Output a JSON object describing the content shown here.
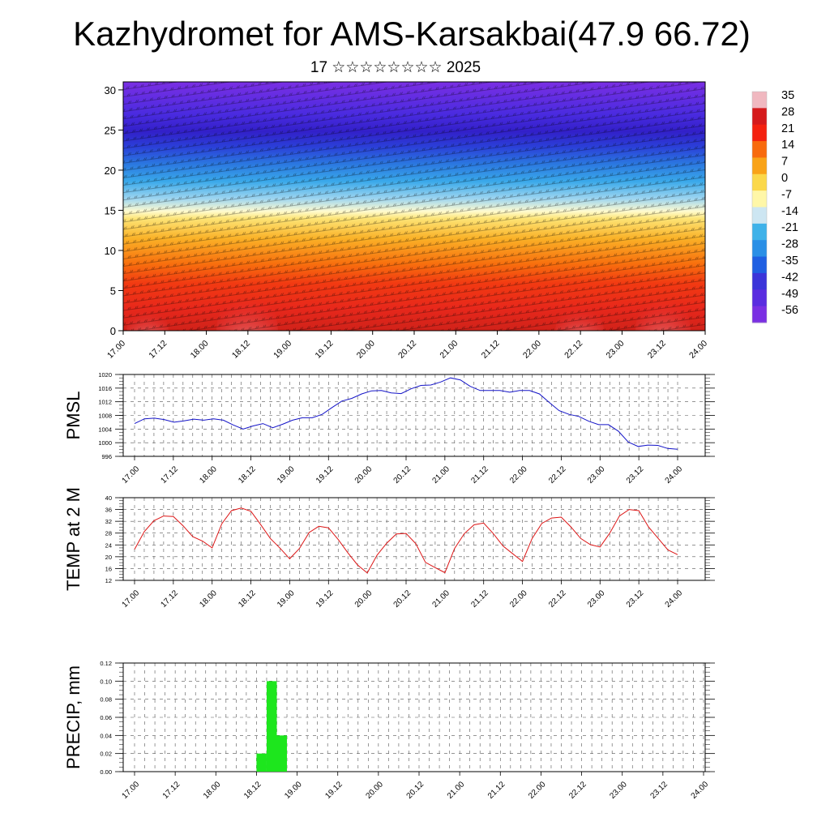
{
  "title": "Kazhydromet for AMS-Karsakbai(47.9 66.72)",
  "subtitle": "17 ☆☆☆☆☆☆☆☆ 2025",
  "time_labels": [
    "17.00",
    "17.12",
    "18.00",
    "18.12",
    "19.00",
    "19.12",
    "20.00",
    "20.12",
    "21.00",
    "21.12",
    "22.00",
    "22.12",
    "23.00",
    "23.12",
    "24.00"
  ],
  "chart_data": [
    {
      "type": "heatmap",
      "y_ticks": [
        "0",
        "5",
        "10",
        "15",
        "20",
        "25",
        "30"
      ],
      "ylim": [
        0,
        31
      ],
      "colorbar_labels": [
        "35",
        "28",
        "21",
        "14",
        "7",
        "0",
        "-7",
        "-14",
        "-21",
        "-28",
        "-35",
        "-42",
        "-49",
        "-56"
      ],
      "colorbar_colors": [
        "#f0b8c0",
        "#d51a1c",
        "#f4210f",
        "#f86a0d",
        "#f9a318",
        "#fbd84a",
        "#fff7a8",
        "#cde6f2",
        "#3fb2e9",
        "#2a8fe6",
        "#1f5fe2",
        "#3b34d9",
        "#5a2ce0",
        "#7a2fe3"
      ],
      "wind_barbs": true
    },
    {
      "type": "line",
      "ylabel": "PMSL",
      "y_ticks": [
        "1020",
        "1016",
        "1012",
        "1008",
        "1004",
        "1000",
        "996"
      ],
      "ylim": [
        996,
        1020
      ],
      "color": "#1414c8",
      "values": [
        1005.6,
        1007,
        1007.2,
        1006.8,
        1006,
        1006.4,
        1006.9,
        1006.6,
        1007,
        1006.6,
        1005.2,
        1004,
        1004.9,
        1005.6,
        1004.4,
        1005.4,
        1006.6,
        1007.3,
        1007.3,
        1008.3,
        1010.3,
        1012.2,
        1013,
        1014.3,
        1015.2,
        1015.3,
        1014.6,
        1014.4,
        1015.8,
        1016.8,
        1016.9,
        1017.8,
        1019,
        1018.4,
        1016.5,
        1015.3,
        1015.3,
        1015.3,
        1014.8,
        1015.3,
        1015.3,
        1014.3,
        1011.8,
        1009.4,
        1008.3,
        1007.7,
        1006.3,
        1005.3,
        1005.3,
        1003.4,
        1000.2,
        998.9,
        999.3,
        999.2,
        998.3,
        998.1
      ]
    },
    {
      "type": "line",
      "ylabel": "TEMP at 2 M",
      "y_ticks": [
        "40",
        "36",
        "32",
        "28",
        "24",
        "20",
        "16",
        "12"
      ],
      "ylim": [
        12,
        40
      ],
      "color": "#dc1414",
      "values": [
        22.5,
        28.5,
        32.2,
        33.8,
        33.6,
        30.5,
        26.8,
        25.3,
        23,
        31.2,
        35.6,
        36.5,
        35.4,
        30.9,
        26.2,
        22.9,
        19.3,
        22.8,
        28.2,
        30.3,
        29.8,
        25.8,
        21.3,
        17.2,
        14.5,
        20.5,
        24.6,
        27.7,
        27.9,
        24.4,
        18.1,
        16.3,
        14.6,
        22.8,
        27.8,
        30.8,
        31.4,
        27.8,
        23.6,
        21,
        18.4,
        26.2,
        31.3,
        33.1,
        33.4,
        30.1,
        26.2,
        24.1,
        23.3,
        28,
        33.8,
        36,
        35.6,
        30.1,
        26.2,
        22.3,
        20.7
      ]
    },
    {
      "type": "bar",
      "ylabel": "PRECIP, mm",
      "y_ticks": [
        "0.12",
        "0.10",
        "0.08",
        "0.06",
        "0.04",
        "0.02",
        "0.00"
      ],
      "ylim": [
        0,
        0.12
      ],
      "color": "#1de61d",
      "x": [
        "18.12",
        "18.15",
        "18.18"
      ],
      "values": [
        0.02,
        0.1,
        0.04
      ]
    }
  ]
}
